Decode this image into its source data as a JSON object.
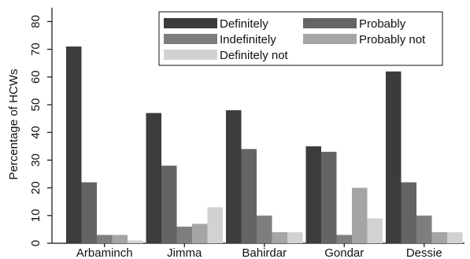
{
  "chart_data": {
    "type": "bar",
    "title": "",
    "xlabel": "",
    "ylabel": "Percentage of HCWs",
    "ylim": [
      0,
      85
    ],
    "yticks": [
      0,
      10,
      20,
      30,
      40,
      50,
      60,
      70,
      80
    ],
    "grid": false,
    "legend_position": "top-right",
    "categories": [
      "Arbaminch",
      "Jimma",
      "Bahirdar",
      "Gondar",
      "Dessie"
    ],
    "series": [
      {
        "name": "Definitely",
        "color": "#3c3c3c",
        "values": [
          71,
          47,
          48,
          35,
          62
        ]
      },
      {
        "name": "Probably",
        "color": "#646464",
        "values": [
          22,
          28,
          34,
          33,
          22
        ]
      },
      {
        "name": "Indefinitely",
        "color": "#7e7e7e",
        "values": [
          3,
          6,
          10,
          3,
          10
        ]
      },
      {
        "name": "Probably not",
        "color": "#a5a5a5",
        "values": [
          3,
          7,
          4,
          20,
          4
        ]
      },
      {
        "name": "Definitely not",
        "color": "#d2d2d2",
        "values": [
          1,
          13,
          4,
          9,
          4
        ]
      }
    ]
  }
}
